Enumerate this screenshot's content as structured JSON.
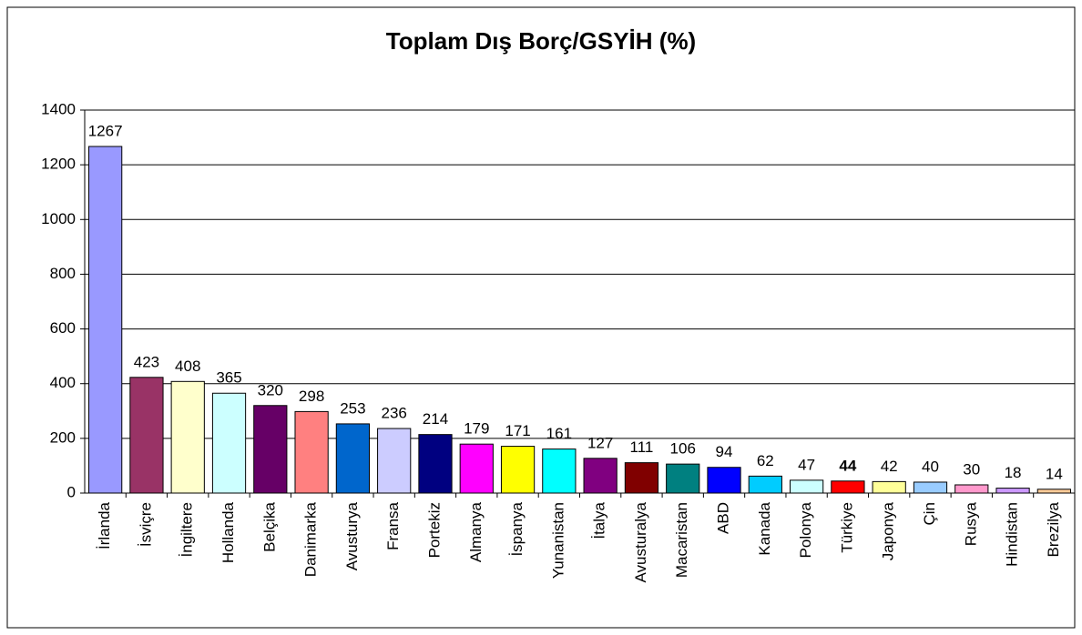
{
  "chart_data": {
    "type": "bar",
    "title": "Toplam Dış Borç/GSYİH (%)",
    "categories": [
      "İrlanda",
      "İsviçre",
      "İngiltere",
      "Hollanda",
      "Belçika",
      "Danimarka",
      "Avusturya",
      "Fransa",
      "Portekiz",
      "Almanya",
      "İspanya",
      "Yunanistan",
      "İtalya",
      "Avusturalya",
      "Macaristan",
      "ABD",
      "Kanada",
      "Polonya",
      "Türkiye",
      "Japonya",
      "Çin",
      "Rusya",
      "Hindistan",
      "Brezilya"
    ],
    "values": [
      1267,
      423,
      408,
      365,
      320,
      298,
      253,
      236,
      214,
      179,
      171,
      161,
      127,
      111,
      106,
      94,
      62,
      47,
      44,
      42,
      40,
      30,
      18,
      14
    ],
    "colors": [
      "#9999ff",
      "#993366",
      "#ffffcc",
      "#ccffff",
      "#660066",
      "#ff8080",
      "#0066cc",
      "#ccccff",
      "#000080",
      "#ff00ff",
      "#ffff00",
      "#00ffff",
      "#800080",
      "#800000",
      "#008080",
      "#0000ff",
      "#00ccff",
      "#ccffff",
      "#ff0000",
      "#ffff99",
      "#99ccff",
      "#ff99cc",
      "#cc99ff",
      "#ffcc99"
    ],
    "emphasis": [
      18
    ],
    "ylim": [
      0,
      1400
    ],
    "yticks": [
      0,
      200,
      400,
      600,
      800,
      1000,
      1200,
      1400
    ],
    "grid": true
  }
}
